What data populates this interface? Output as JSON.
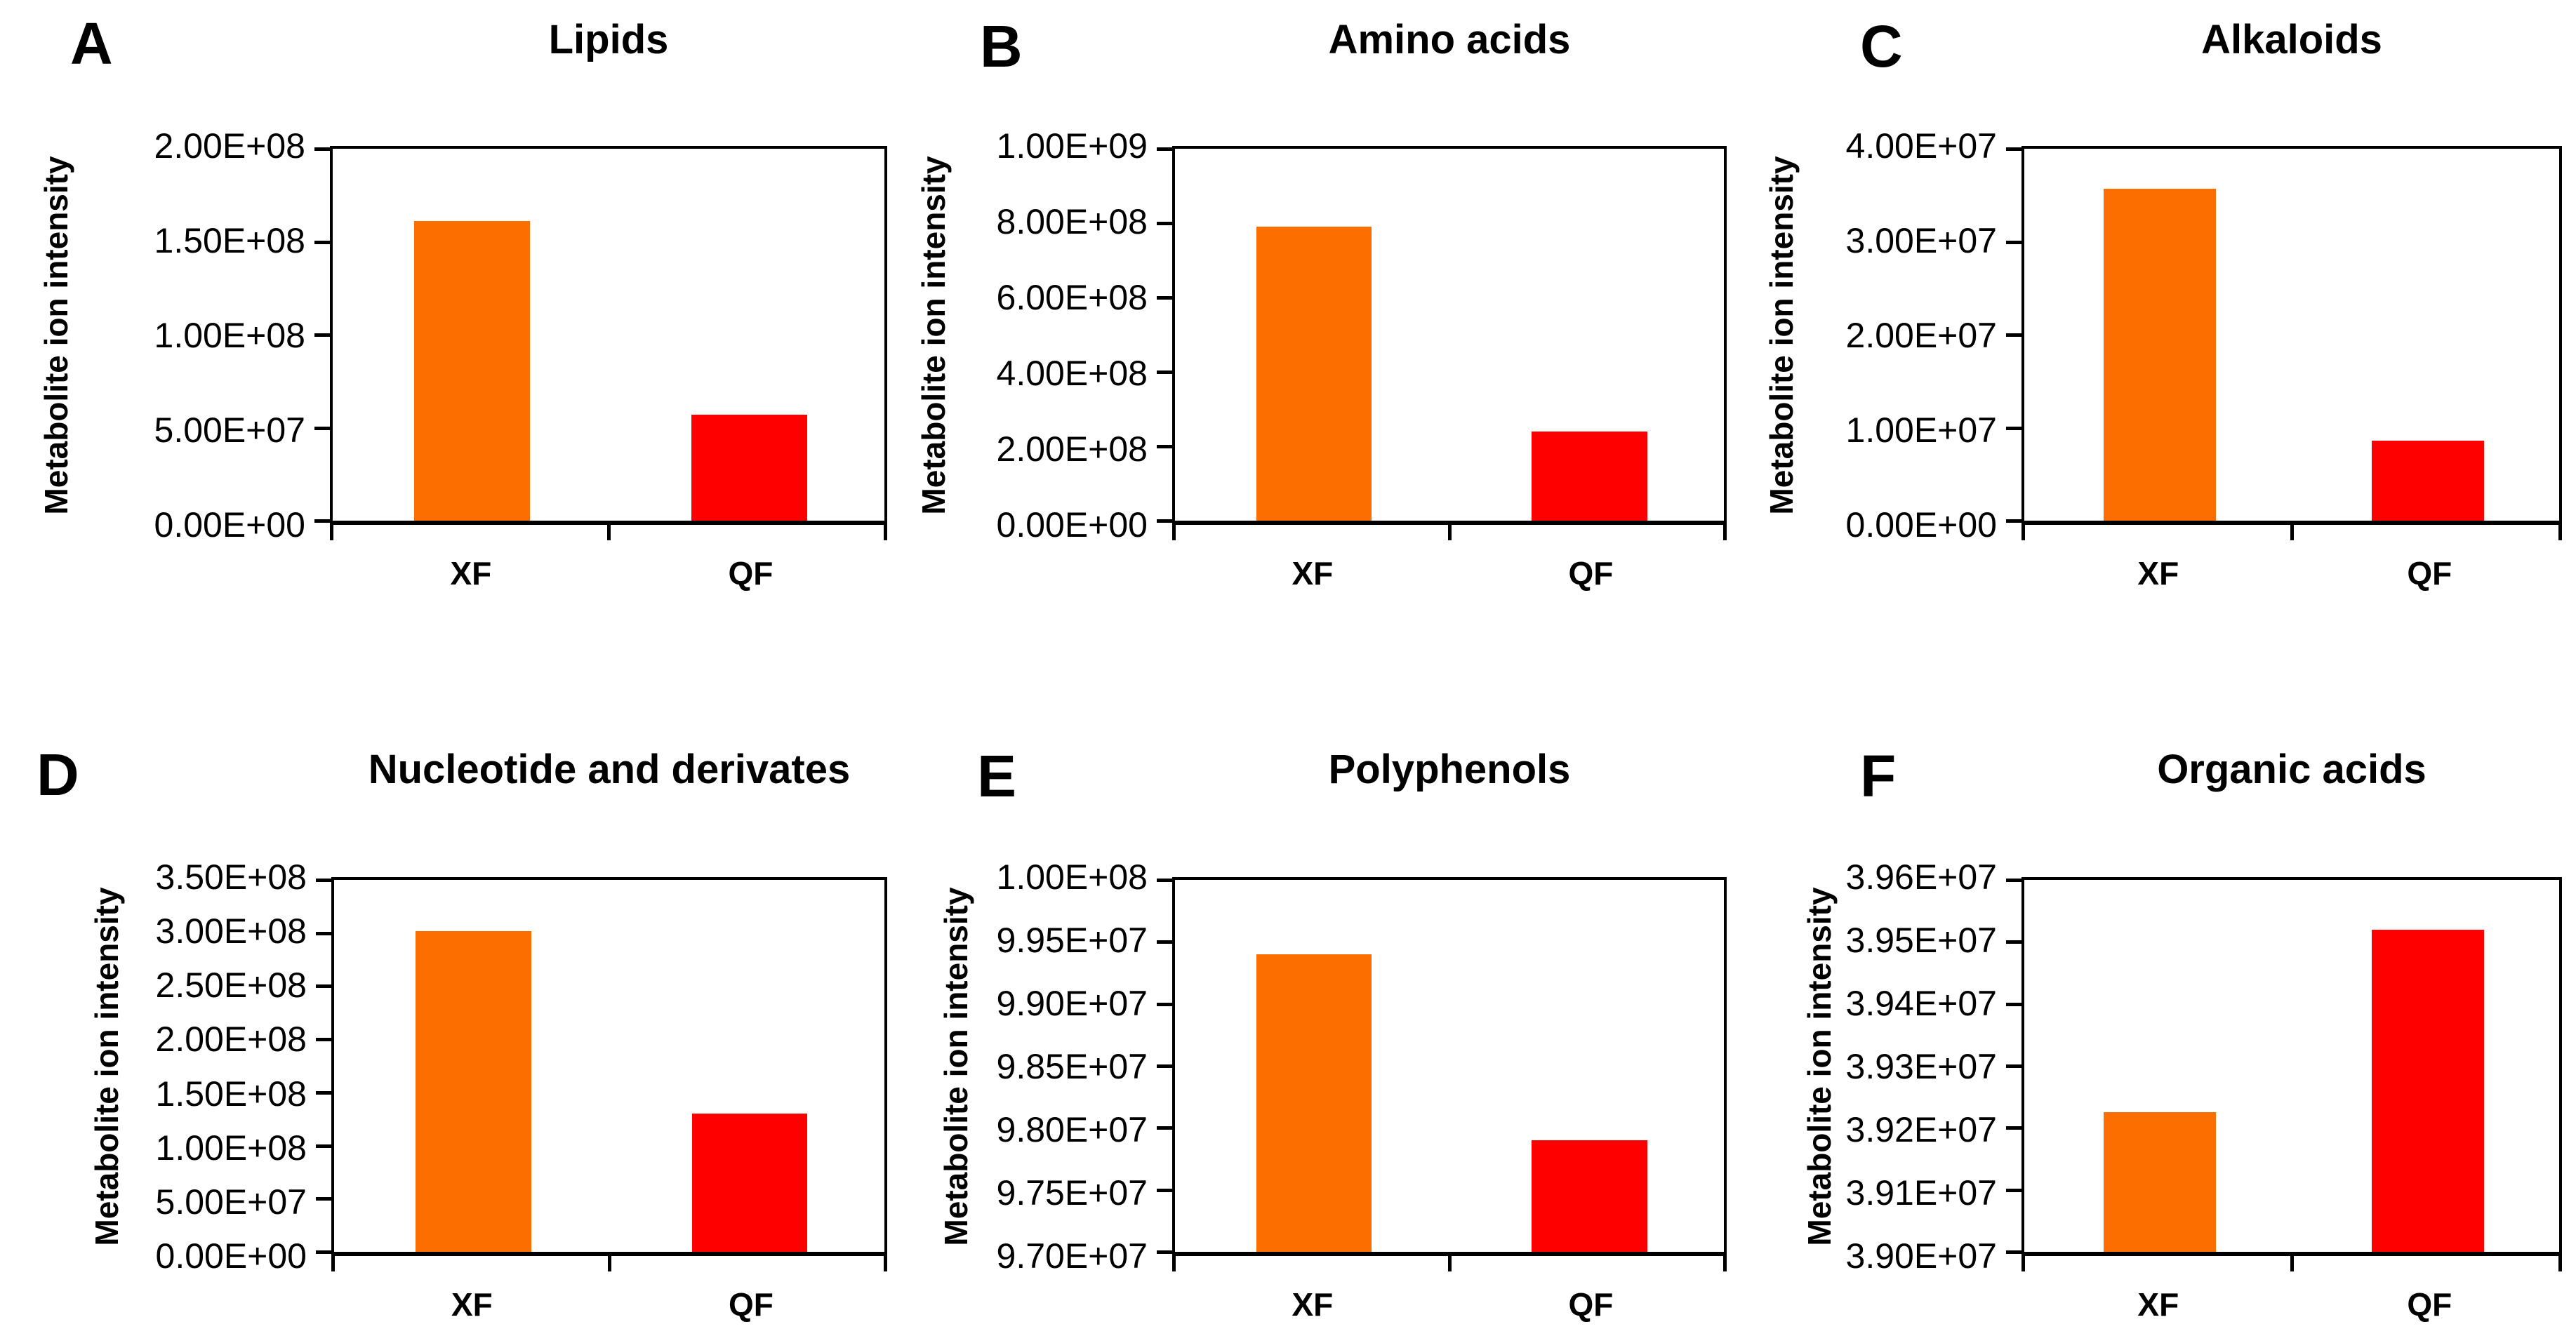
{
  "figure": {
    "y_axis_title": "Metabolite ion intensity",
    "categories": [
      "XF",
      "QF"
    ],
    "colors": {
      "xf_bar": "#FD6E00",
      "qf_bar": "#FF0000",
      "axis": "#000000",
      "text": "#000000",
      "background": "#FFFFFF"
    }
  },
  "chart_data": [
    {
      "type": "bar",
      "panel": "A",
      "title": "Lipids",
      "ylabel": "Metabolite ion intensity",
      "categories": [
        "XF",
        "QF"
      ],
      "values": [
        161000000,
        57000000
      ],
      "series_colors": [
        "#FD6E00",
        "#FF0000"
      ],
      "ylim": [
        0,
        200000000
      ],
      "ytick_labels": [
        "2.00E+08",
        "1.50E+08",
        "1.00E+08",
        "5.00E+07",
        "0.00E+00"
      ],
      "grid": false,
      "legend": false
    },
    {
      "type": "bar",
      "panel": "B",
      "title": "Amino acids",
      "ylabel": "Metabolite ion intensity",
      "categories": [
        "XF",
        "QF"
      ],
      "values": [
        790000000,
        240000000
      ],
      "series_colors": [
        "#FD6E00",
        "#FF0000"
      ],
      "ylim": [
        0,
        1000000000
      ],
      "ytick_labels": [
        "1.00E+09",
        "8.00E+08",
        "6.00E+08",
        "4.00E+08",
        "2.00E+08",
        "0.00E+00"
      ],
      "grid": false,
      "legend": false
    },
    {
      "type": "bar",
      "panel": "C",
      "title": "Alkaloids",
      "ylabel": "Metabolite ion intensity",
      "categories": [
        "XF",
        "QF"
      ],
      "values": [
        35700000,
        8600000
      ],
      "series_colors": [
        "#FD6E00",
        "#FF0000"
      ],
      "ylim": [
        0,
        40000000
      ],
      "ytick_labels": [
        "4.00E+07",
        "3.00E+07",
        "2.00E+07",
        "1.00E+07",
        "0.00E+00"
      ],
      "grid": false,
      "legend": false
    },
    {
      "type": "bar",
      "panel": "D",
      "title": "Nucleotide and derivates",
      "ylabel": "Metabolite ion intensity",
      "categories": [
        "XF",
        "QF"
      ],
      "values": [
        302000000,
        130000000
      ],
      "series_colors": [
        "#FD6E00",
        "#FF0000"
      ],
      "ylim": [
        0,
        350000000
      ],
      "ytick_labels": [
        "3.50E+08",
        "3.00E+08",
        "2.50E+08",
        "2.00E+08",
        "1.50E+08",
        "1.00E+08",
        "5.00E+07",
        "0.00E+00"
      ],
      "grid": false,
      "legend": false
    },
    {
      "type": "bar",
      "panel": "E",
      "title": "Polyphenols",
      "ylabel": "Metabolite ion intensity",
      "categories": [
        "XF",
        "QF"
      ],
      "values": [
        99400000,
        97900000
      ],
      "series_colors": [
        "#FD6E00",
        "#FF0000"
      ],
      "ylim": [
        97000000,
        100000000
      ],
      "ytick_labels": [
        "1.00E+08",
        "9.95E+07",
        "9.90E+07",
        "9.85E+07",
        "9.80E+07",
        "9.75E+07",
        "9.70E+07"
      ],
      "grid": false,
      "legend": false
    },
    {
      "type": "bar",
      "panel": "F",
      "title": "Organic acids",
      "ylabel": "Metabolite ion intensity",
      "categories": [
        "XF",
        "QF"
      ],
      "values": [
        39225000,
        39520000
      ],
      "series_colors": [
        "#FD6E00",
        "#FF0000"
      ],
      "ylim": [
        39000000,
        39600000
      ],
      "ytick_labels": [
        "3.96E+07",
        "3.95E+07",
        "3.94E+07",
        "3.93E+07",
        "3.92E+07",
        "3.91E+07",
        "3.90E+07"
      ],
      "grid": false,
      "legend": false
    }
  ]
}
